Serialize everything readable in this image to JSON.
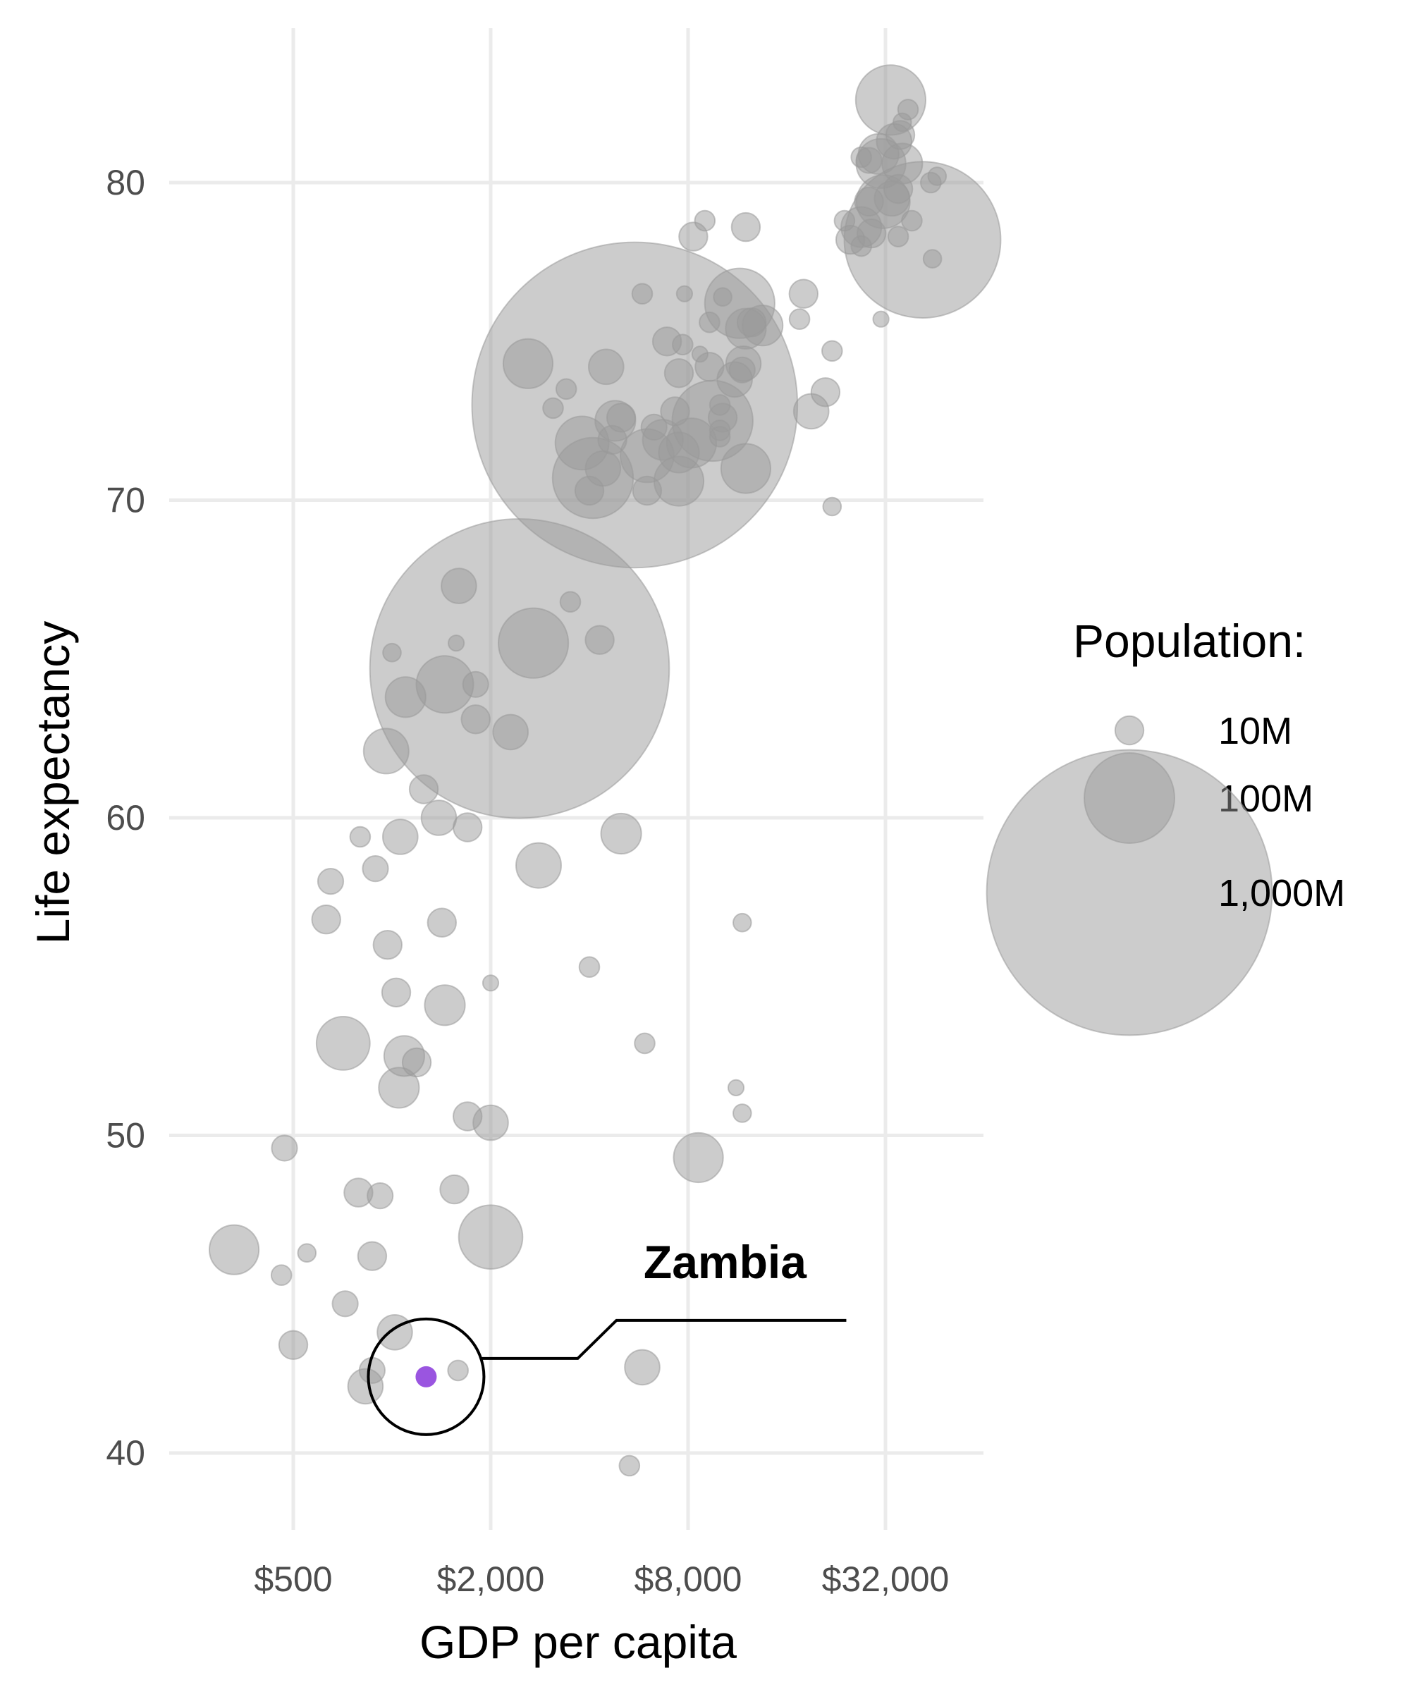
{
  "chart_data": {
    "type": "scatter",
    "title": "",
    "xlabel": "GDP per capita",
    "ylabel": "Life expectancy",
    "x_scale": "log2",
    "xlim": [
      250,
      60000
    ],
    "ylim": [
      37.5,
      84.8
    ],
    "x_ticks": [
      500,
      2000,
      8000,
      32000
    ],
    "x_tick_labels": [
      "$500",
      "$2,000",
      "$8,000",
      "$32,000"
    ],
    "y_ticks": [
      40,
      50,
      60,
      70,
      80
    ],
    "y_tick_labels": [
      "40",
      "50",
      "60",
      "70",
      "80"
    ],
    "grid": true,
    "point_color": "#999999",
    "highlight_color": "#9a55e0",
    "legend": {
      "title": "Population:",
      "placement": "right",
      "entries": [
        {
          "label": "10M",
          "pop_millions": 10
        },
        {
          "label": "100M",
          "pop_millions": 100
        },
        {
          "label": "1,000M",
          "pop_millions": 1000
        }
      ]
    },
    "highlight": {
      "name": "Zambia",
      "gdp": 1271,
      "life_exp": 42.4,
      "pop_millions": 12
    },
    "points": [
      [
        33200,
        82.6,
        60
      ],
      [
        37500,
        82.3,
        5
      ],
      [
        35500,
        81.5,
        10
      ],
      [
        34000,
        81.3,
        15
      ],
      [
        36000,
        81.9,
        4
      ],
      [
        30500,
        80.9,
        20
      ],
      [
        28500,
        80.7,
        8
      ],
      [
        27000,
        80.8,
        5
      ],
      [
        31000,
        80.6,
        30
      ],
      [
        36000,
        80.6,
        20
      ],
      [
        44000,
        80.0,
        5
      ],
      [
        46000,
        80.2,
        4
      ],
      [
        31500,
        79.4,
        35
      ],
      [
        33500,
        79.5,
        15
      ],
      [
        35000,
        79.8,
        10
      ],
      [
        28500,
        79.4,
        10
      ],
      [
        38500,
        78.8,
        5
      ],
      [
        41500,
        78.2,
        300
      ],
      [
        35000,
        78.3,
        5
      ],
      [
        29000,
        78.4,
        10
      ],
      [
        24000,
        78.8,
        5
      ],
      [
        25000,
        78.2,
        10
      ],
      [
        27000,
        78.6,
        20
      ],
      [
        27000,
        78.0,
        5
      ],
      [
        44500,
        77.6,
        4
      ],
      [
        8300,
        78.3,
        10
      ],
      [
        9000,
        78.8,
        5
      ],
      [
        12000,
        78.6,
        10
      ],
      [
        18000,
        76.5,
        10
      ],
      [
        17500,
        75.7,
        5
      ],
      [
        31000,
        75.7,
        3
      ],
      [
        22000,
        74.7,
        5
      ],
      [
        21000,
        73.4,
        10
      ],
      [
        19000,
        72.8,
        15
      ],
      [
        22000,
        69.8,
        4
      ],
      [
        5800,
        76.5,
        5
      ],
      [
        7800,
        76.5,
        3
      ],
      [
        10200,
        76.4,
        4
      ],
      [
        11500,
        76.2,
        60
      ],
      [
        12500,
        75.6,
        10
      ],
      [
        13500,
        75.5,
        20
      ],
      [
        9300,
        75.6,
        5
      ],
      [
        12000,
        75.4,
        20
      ],
      [
        6900,
        75.0,
        10
      ],
      [
        7700,
        74.9,
        5
      ],
      [
        8700,
        74.6,
        3
      ],
      [
        9300,
        74.2,
        10
      ],
      [
        11800,
        74.3,
        15
      ],
      [
        11100,
        73.8,
        15
      ],
      [
        11700,
        74.1,
        8
      ],
      [
        2600,
        74.3,
        30
      ],
      [
        3400,
        73.5,
        5
      ],
      [
        4500,
        74.2,
        15
      ],
      [
        3100,
        72.9,
        5
      ],
      [
        4800,
        72.5,
        20
      ],
      [
        4700,
        71.9,
        10
      ],
      [
        5000,
        72.6,
        10
      ],
      [
        6700,
        71.9,
        20
      ],
      [
        6300,
        72.3,
        8
      ],
      [
        7300,
        72.8,
        10
      ],
      [
        7500,
        71.5,
        20
      ],
      [
        5500,
        73.0,
        1300
      ],
      [
        10200,
        72.6,
        10
      ],
      [
        9500,
        72.5,
        80
      ],
      [
        10000,
        73.0,
        5
      ],
      [
        7500,
        74.0,
        10
      ],
      [
        10000,
        72.2,
        5
      ],
      [
        3800,
        71.8,
        35
      ],
      [
        4400,
        71.0,
        15
      ],
      [
        6000,
        71.4,
        35
      ],
      [
        8200,
        71.8,
        30
      ],
      [
        10000,
        72.0,
        5
      ],
      [
        12000,
        71.0,
        30
      ],
      [
        4100,
        70.7,
        80
      ],
      [
        4000,
        70.3,
        10
      ],
      [
        6000,
        70.3,
        10
      ],
      [
        7500,
        70.6,
        30
      ],
      [
        1600,
        67.3,
        15
      ],
      [
        3500,
        66.8,
        5
      ],
      [
        4300,
        65.6,
        10
      ],
      [
        1000,
        65.2,
        4
      ],
      [
        1570,
        65.5,
        3
      ],
      [
        1100,
        63.8,
        20
      ],
      [
        2450,
        64.7,
        1100
      ],
      [
        1450,
        64.2,
        40
      ],
      [
        1800,
        64.2,
        8
      ],
      [
        2700,
        65.5,
        60
      ],
      [
        1800,
        63.1,
        10
      ],
      [
        2300,
        62.7,
        15
      ],
      [
        960,
        62.1,
        25
      ],
      [
        1250,
        60.9,
        10
      ],
      [
        1390,
        60.0,
        15
      ],
      [
        1700,
        59.7,
        10
      ],
      [
        5000,
        59.5,
        20
      ],
      [
        800,
        59.4,
        5
      ],
      [
        1060,
        59.4,
        15
      ],
      [
        2800,
        58.5,
        25
      ],
      [
        650,
        58.0,
        8
      ],
      [
        890,
        58.4,
        8
      ],
      [
        11700,
        56.7,
        4
      ],
      [
        630,
        56.8,
        10
      ],
      [
        1420,
        56.7,
        10
      ],
      [
        970,
        56.0,
        10
      ],
      [
        1030,
        54.5,
        10
      ],
      [
        1450,
        54.1,
        20
      ],
      [
        2000,
        54.8,
        3
      ],
      [
        4000,
        55.3,
        5
      ],
      [
        710,
        52.9,
        35
      ],
      [
        1090,
        52.5,
        20
      ],
      [
        1190,
        52.3,
        10
      ],
      [
        5900,
        52.9,
        5
      ],
      [
        1050,
        51.5,
        20
      ],
      [
        11200,
        51.5,
        3
      ],
      [
        11700,
        50.7,
        4
      ],
      [
        1700,
        50.6,
        10
      ],
      [
        2000,
        50.4,
        15
      ],
      [
        8600,
        49.3,
        30
      ],
      [
        470,
        49.6,
        8
      ],
      [
        790,
        48.2,
        10
      ],
      [
        920,
        48.1,
        8
      ],
      [
        1550,
        48.3,
        10
      ],
      [
        2000,
        46.8,
        50
      ],
      [
        330,
        46.4,
        30
      ],
      [
        550,
        46.3,
        4
      ],
      [
        870,
        46.2,
        10
      ],
      [
        460,
        45.6,
        5
      ],
      [
        720,
        44.7,
        8
      ],
      [
        500,
        43.4,
        10
      ],
      [
        1020,
        43.8,
        15
      ],
      [
        870,
        42.6,
        8
      ],
      [
        1590,
        42.6,
        5
      ],
      [
        830,
        42.1,
        15
      ],
      [
        5800,
        42.7,
        15
      ],
      [
        5300,
        39.6,
        5
      ]
    ]
  }
}
